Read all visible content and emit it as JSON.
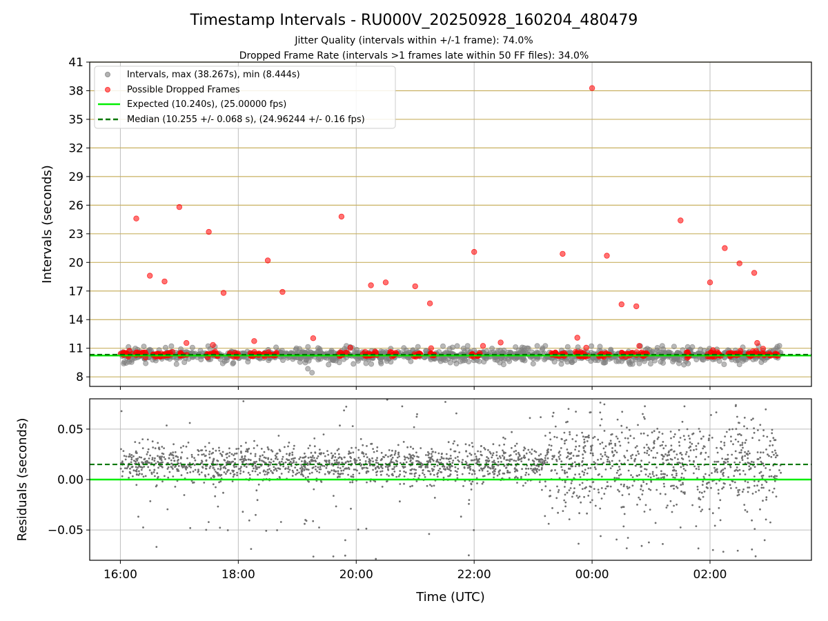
{
  "title": "Timestamp Intervals - RU000V_20250928_160204_480479",
  "subtitle_lines": [
    "Jitter Quality (intervals within +/-1 frame): 74.0%",
    "Dropped Frame Rate (intervals >1 frames late within 50 FF files): 34.0%"
  ],
  "colors": {
    "intervals": "#808080",
    "dropped": "#ff0000",
    "expected": "#00ee00",
    "median": "#007700",
    "hgrid": "#c8b060",
    "vgrid": "#bdbdbd",
    "residual_points": "#6e6e6e"
  },
  "chart_data": [
    {
      "type": "scatter",
      "ylabel": "Intervals (seconds)",
      "xlabel": "",
      "x_unit": "hours (UTC) from 16:00",
      "xlim": [
        -0.52,
        11.72
      ],
      "ylim": [
        7,
        41
      ],
      "yticks": [
        8,
        11,
        14,
        17,
        20,
        23,
        26,
        29,
        32,
        35,
        38,
        41
      ],
      "hgrid": true,
      "vgrid": true,
      "legend_position": "top-left",
      "legend": [
        "Intervals, max (38.267s), min (8.444s)",
        "Possible Dropped Frames",
        "Expected (10.240s), (25.00000 fps)",
        "Median (10.255 +/- 0.068 s), (24.96244 +/- 0.16 fps)"
      ],
      "expected_y": 10.24,
      "median_y": 10.255,
      "series": [
        {
          "name": "Intervals, max (38.267s), min (8.444s)",
          "x_range": [
            0.0,
            11.2
          ],
          "y_center": 10.26,
          "y_spread": 0.55,
          "outliers": [
            [
              3.18,
              8.85
            ],
            [
              3.25,
              8.44
            ],
            [
              6.5,
              9.3
            ],
            [
              8.8,
              9.4
            ],
            [
              10.5,
              9.3
            ]
          ]
        },
        {
          "name": "Possible Dropped Frames",
          "points": [
            [
              0.27,
              24.6
            ],
            [
              0.5,
              18.6
            ],
            [
              0.75,
              18.0
            ],
            [
              1.0,
              25.8
            ],
            [
              1.5,
              23.2
            ],
            [
              1.75,
              16.8
            ],
            [
              2.5,
              20.2
            ],
            [
              2.75,
              16.9
            ],
            [
              3.75,
              24.8
            ],
            [
              4.25,
              17.6
            ],
            [
              4.5,
              17.9
            ],
            [
              5.0,
              17.5
            ],
            [
              5.25,
              15.7
            ],
            [
              6.0,
              21.1
            ],
            [
              7.5,
              20.9
            ],
            [
              8.0,
              38.27
            ],
            [
              8.25,
              20.7
            ],
            [
              8.5,
              15.6
            ],
            [
              8.75,
              15.4
            ],
            [
              9.5,
              24.4
            ],
            [
              10.0,
              17.9
            ],
            [
              10.25,
              21.5
            ],
            [
              10.5,
              19.9
            ],
            [
              10.75,
              18.9
            ],
            [
              1.12,
              11.55
            ],
            [
              1.57,
              11.35
            ],
            [
              2.27,
              11.75
            ],
            [
              3.27,
              12.05
            ],
            [
              3.9,
              11.05
            ],
            [
              5.27,
              11.0
            ],
            [
              6.15,
              11.25
            ],
            [
              6.45,
              11.6
            ],
            [
              7.75,
              12.1
            ],
            [
              7.9,
              11.05
            ],
            [
              8.8,
              11.25
            ],
            [
              10.05,
              10.8
            ],
            [
              10.8,
              11.55
            ],
            [
              10.9,
              10.95
            ]
          ],
          "clusters": [
            [
              0.0,
              0.45
            ],
            [
              0.55,
              0.9
            ],
            [
              1.0,
              1.15
            ],
            [
              1.45,
              1.65
            ],
            [
              1.85,
              2.0
            ],
            [
              2.2,
              2.45
            ],
            [
              2.5,
              2.65
            ],
            [
              3.7,
              3.85
            ],
            [
              4.1,
              4.35
            ],
            [
              4.55,
              4.7
            ],
            [
              4.95,
              5.1
            ],
            [
              5.25,
              5.35
            ],
            [
              5.95,
              6.1
            ],
            [
              7.3,
              7.55
            ],
            [
              7.7,
              7.95
            ],
            [
              8.1,
              8.3
            ],
            [
              8.5,
              8.7
            ],
            [
              8.75,
              8.95
            ],
            [
              9.55,
              9.65
            ],
            [
              9.95,
              10.2
            ],
            [
              10.3,
              10.55
            ],
            [
              10.6,
              10.95
            ],
            [
              11.0,
              11.15
            ]
          ]
        }
      ]
    },
    {
      "type": "scatter",
      "ylabel": "Residuals (seconds)",
      "xlabel": "Time (UTC)",
      "xlim": [
        -0.52,
        11.72
      ],
      "ylim": [
        -0.08,
        0.08
      ],
      "yticks": [
        -0.05,
        0.0,
        0.05
      ],
      "ytick_labels": [
        "−0.05",
        "0.00",
        "0.05"
      ],
      "xticks": [
        0,
        2,
        4,
        6,
        8,
        10
      ],
      "xtick_labels": [
        "16:00",
        "18:00",
        "20:00",
        "22:00",
        "00:00",
        "02:00"
      ],
      "grid": true,
      "zero_line_y": 0.0,
      "median_residual_y": 0.015,
      "series": [
        {
          "name": "Residuals",
          "x_range": [
            0.0,
            11.2
          ],
          "count_estimate": 2400,
          "center": 0.015,
          "spread_early": 0.009,
          "spread_late": 0.02
        }
      ]
    }
  ]
}
